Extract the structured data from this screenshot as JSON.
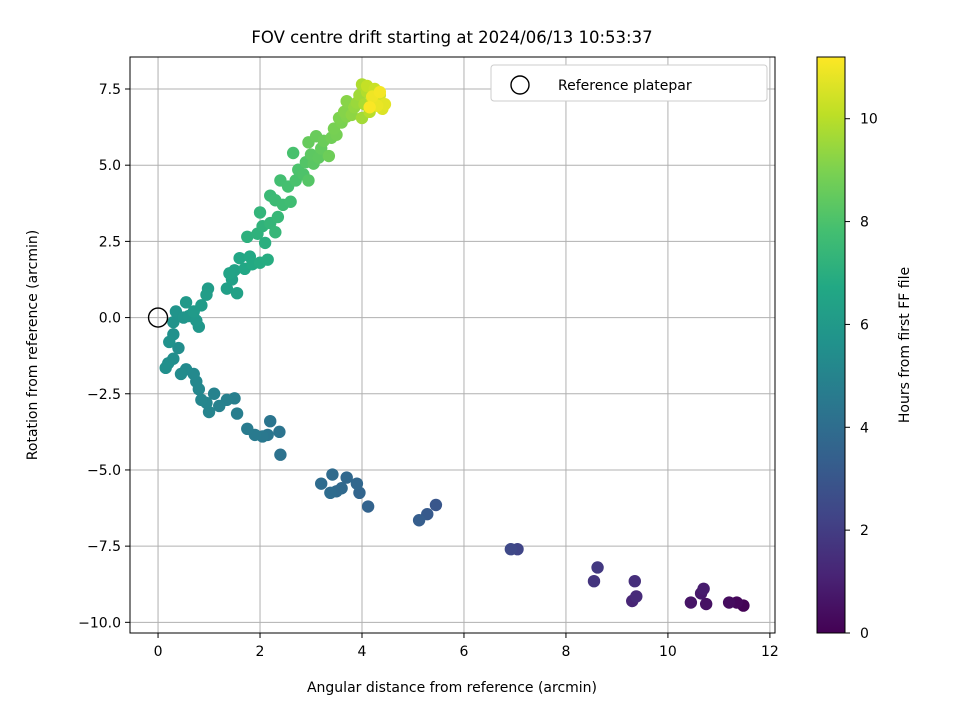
{
  "chart_data": {
    "type": "scatter",
    "title": "FOV centre drift starting at 2024/06/13 10:53:37",
    "xlabel": "Angular distance from reference (arcmin)",
    "ylabel": "Rotation from reference (arcmin)",
    "xlim": [
      -0.55,
      12.1
    ],
    "ylim": [
      -10.35,
      8.55
    ],
    "xticks": [
      0,
      2,
      4,
      6,
      8,
      10,
      12
    ],
    "xtick_labels": [
      "0",
      "2",
      "4",
      "6",
      "8",
      "10",
      "12"
    ],
    "yticks": [
      -10,
      -7.5,
      -5,
      -2.5,
      0,
      2.5,
      5,
      7.5
    ],
    "ytick_labels": [
      "−10.0",
      "−7.5",
      "−5.0",
      "−2.5",
      "0.0",
      "2.5",
      "5.0",
      "7.5"
    ],
    "grid": true,
    "legend": {
      "placement": "upper right",
      "entries": [
        "Reference platepar"
      ]
    },
    "reference_point": {
      "x": 0,
      "y": 0
    },
    "colorbar": {
      "label": "Hours from first FF file",
      "range": [
        0,
        11.2
      ],
      "ticks": [
        0,
        2,
        4,
        6,
        8,
        10
      ],
      "tick_labels": [
        "0",
        "2",
        "4",
        "6",
        "8",
        "10"
      ],
      "colormap": "viridis"
    },
    "series": [
      {
        "comment_free": true,
        "points": [
          [
            11.48,
            -9.45,
            0.05
          ],
          [
            11.35,
            -9.35,
            0.2
          ],
          [
            11.2,
            -9.35,
            0.35
          ],
          [
            10.75,
            -9.4,
            0.5
          ],
          [
            10.45,
            -9.35,
            0.6
          ],
          [
            10.65,
            -9.05,
            0.75
          ],
          [
            10.7,
            -8.9,
            0.85
          ],
          [
            9.3,
            -9.3,
            1.2
          ],
          [
            9.38,
            -9.15,
            1.35
          ],
          [
            9.35,
            -8.65,
            1.5
          ],
          [
            8.55,
            -8.65,
            1.7
          ],
          [
            8.62,
            -8.2,
            1.85
          ],
          [
            7.05,
            -7.6,
            2.3
          ],
          [
            6.92,
            -7.6,
            2.45
          ],
          [
            5.45,
            -6.15,
            3.0
          ],
          [
            5.28,
            -6.45,
            3.15
          ],
          [
            5.12,
            -6.65,
            3.3
          ],
          [
            4.12,
            -6.2,
            3.55
          ],
          [
            3.95,
            -5.75,
            3.65
          ],
          [
            3.9,
            -5.45,
            3.7
          ],
          [
            3.7,
            -5.25,
            3.75
          ],
          [
            3.6,
            -5.6,
            3.8
          ],
          [
            3.5,
            -5.7,
            3.85
          ],
          [
            3.42,
            -5.15,
            3.9
          ],
          [
            3.38,
            -5.75,
            3.92
          ],
          [
            3.2,
            -5.45,
            3.95
          ],
          [
            2.4,
            -4.5,
            4.2
          ],
          [
            2.38,
            -3.75,
            4.3
          ],
          [
            2.2,
            -3.4,
            4.35
          ],
          [
            2.15,
            -3.85,
            4.4
          ],
          [
            2.05,
            -3.9,
            4.5
          ],
          [
            1.9,
            -3.85,
            4.55
          ],
          [
            1.75,
            -3.65,
            4.6
          ],
          [
            1.55,
            -3.15,
            4.75
          ],
          [
            1.5,
            -2.65,
            4.8
          ],
          [
            1.35,
            -2.7,
            4.85
          ],
          [
            1.2,
            -2.9,
            4.9
          ],
          [
            1.1,
            -2.5,
            4.95
          ],
          [
            1.0,
            -3.1,
            5.0
          ],
          [
            0.95,
            -2.8,
            5.05
          ],
          [
            0.85,
            -2.7,
            5.1
          ],
          [
            0.8,
            -2.35,
            5.15
          ],
          [
            0.75,
            -2.1,
            5.2
          ],
          [
            0.7,
            -1.85,
            5.25
          ],
          [
            0.55,
            -1.7,
            5.3
          ],
          [
            0.45,
            -1.85,
            5.35
          ],
          [
            0.4,
            -1.0,
            5.4
          ],
          [
            0.3,
            -1.35,
            5.45
          ],
          [
            0.2,
            -1.5,
            5.5
          ],
          [
            0.15,
            -1.65,
            5.55
          ],
          [
            0.3,
            -0.55,
            5.6
          ],
          [
            0.22,
            -0.8,
            5.65
          ],
          [
            0.3,
            -0.15,
            5.7
          ],
          [
            0.35,
            0.2,
            5.75
          ],
          [
            0.5,
            0.0,
            5.8
          ],
          [
            0.6,
            0.05,
            5.85
          ],
          [
            0.8,
            -0.3,
            5.9
          ],
          [
            0.75,
            -0.1,
            5.95
          ],
          [
            0.55,
            0.5,
            6.0
          ],
          [
            0.7,
            0.2,
            6.05
          ],
          [
            0.85,
            0.4,
            6.1
          ],
          [
            0.98,
            0.95,
            6.15
          ],
          [
            0.95,
            0.75,
            6.2
          ],
          [
            1.35,
            0.95,
            6.3
          ],
          [
            1.45,
            1.25,
            6.35
          ],
          [
            1.55,
            0.8,
            6.4
          ],
          [
            1.5,
            1.55,
            6.45
          ],
          [
            1.4,
            1.45,
            6.5
          ],
          [
            1.6,
            1.95,
            6.6
          ],
          [
            1.7,
            1.6,
            6.65
          ],
          [
            1.8,
            2.0,
            6.7
          ],
          [
            1.85,
            1.75,
            6.75
          ],
          [
            2.0,
            1.8,
            6.85
          ],
          [
            2.15,
            1.9,
            6.9
          ],
          [
            2.1,
            2.45,
            7.0
          ],
          [
            1.75,
            2.65,
            7.1
          ],
          [
            1.95,
            2.75,
            7.15
          ],
          [
            2.05,
            3.0,
            7.2
          ],
          [
            2.0,
            3.45,
            7.3
          ],
          [
            2.2,
            3.1,
            7.35
          ],
          [
            2.3,
            2.8,
            7.4
          ],
          [
            2.35,
            3.3,
            7.45
          ],
          [
            2.2,
            4.0,
            7.55
          ],
          [
            2.3,
            3.85,
            7.6
          ],
          [
            2.45,
            3.7,
            7.65
          ],
          [
            2.6,
            3.8,
            7.7
          ],
          [
            2.4,
            4.5,
            7.8
          ],
          [
            2.55,
            4.3,
            7.85
          ],
          [
            2.65,
            5.4,
            7.9
          ],
          [
            2.7,
            4.5,
            7.95
          ],
          [
            2.75,
            4.85,
            8.0
          ],
          [
            2.85,
            4.7,
            8.05
          ],
          [
            2.9,
            5.1,
            8.15
          ],
          [
            2.95,
            4.5,
            8.2
          ],
          [
            3.05,
            5.05,
            8.3
          ],
          [
            3.0,
            5.35,
            8.35
          ],
          [
            3.15,
            5.25,
            8.4
          ],
          [
            3.2,
            5.55,
            8.5
          ],
          [
            2.95,
            5.75,
            8.55
          ],
          [
            3.1,
            5.95,
            8.6
          ],
          [
            3.25,
            5.8,
            8.65
          ],
          [
            3.35,
            5.3,
            8.7
          ],
          [
            3.4,
            5.9,
            8.75
          ],
          [
            3.5,
            6.0,
            8.85
          ],
          [
            3.45,
            6.2,
            8.9
          ],
          [
            3.6,
            6.4,
            8.95
          ],
          [
            3.55,
            6.55,
            9.0
          ],
          [
            3.7,
            6.6,
            9.1
          ],
          [
            3.65,
            6.75,
            9.15
          ],
          [
            3.7,
            7.1,
            9.2
          ],
          [
            3.8,
            6.65,
            9.3
          ],
          [
            3.85,
            6.9,
            9.4
          ],
          [
            3.9,
            7.05,
            9.5
          ],
          [
            3.95,
            7.3,
            9.6
          ],
          [
            4.0,
            6.55,
            9.65
          ],
          [
            4.05,
            7.0,
            9.75
          ],
          [
            4.0,
            7.65,
            9.85
          ],
          [
            4.1,
            7.4,
            9.9
          ],
          [
            4.15,
            6.75,
            10.0
          ],
          [
            4.2,
            7.15,
            10.1
          ],
          [
            4.1,
            7.6,
            10.2
          ],
          [
            4.25,
            7.5,
            10.3
          ],
          [
            4.3,
            7.05,
            10.4
          ],
          [
            4.35,
            7.3,
            10.5
          ],
          [
            4.4,
            6.85,
            10.6
          ],
          [
            4.45,
            7.0,
            10.75
          ],
          [
            4.3,
            6.95,
            10.85
          ],
          [
            4.2,
            7.25,
            10.95
          ],
          [
            4.35,
            7.4,
            11.05
          ],
          [
            4.15,
            6.9,
            11.15
          ]
        ]
      }
    ]
  }
}
